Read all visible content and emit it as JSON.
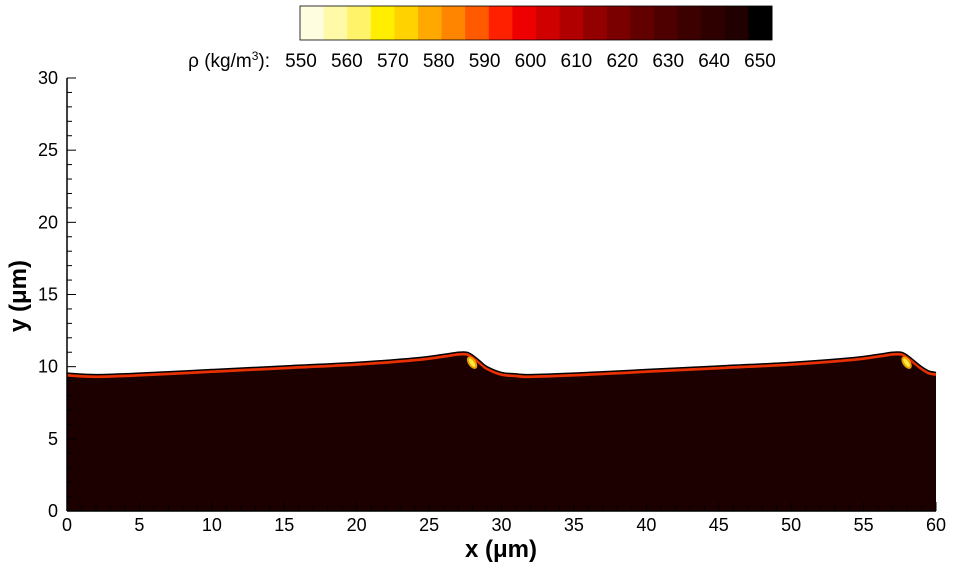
{
  "chart_data": {
    "type": "contour",
    "colorbar": {
      "label_prefix": "ρ (kg/m",
      "label_exp": "3",
      "label_suffix": "):",
      "levels": [
        550,
        560,
        570,
        580,
        590,
        600,
        610,
        620,
        630,
        640,
        650
      ],
      "colors": [
        "#fffde0",
        "#fffaa8",
        "#fff36a",
        "#ffee00",
        "#ffd200",
        "#ffa800",
        "#ff8400",
        "#ff5a00",
        "#ff2000",
        "#ee0000",
        "#cf0000",
        "#b10000",
        "#930000",
        "#7a0000",
        "#620000",
        "#4e0000",
        "#3d0000",
        "#2e0000",
        "#200000",
        "#000000"
      ]
    },
    "xaxis": {
      "label_var": "x",
      "label_unit": "μm",
      "min": 0,
      "max": 60,
      "ticks": [
        0,
        5,
        10,
        15,
        20,
        25,
        30,
        35,
        40,
        45,
        50,
        55,
        60
      ]
    },
    "yaxis": {
      "label_var": "y",
      "label_unit": "μm",
      "min": 0,
      "max": 30,
      "ticks": [
        0,
        5,
        10,
        15,
        20,
        25,
        30
      ]
    },
    "interface": {
      "x": [
        0,
        2,
        5,
        10,
        15,
        20,
        24,
        26,
        27,
        27.6,
        28,
        28.5,
        29,
        30,
        31,
        32,
        35,
        40,
        45,
        50,
        54,
        56,
        57,
        57.6,
        58,
        58.5,
        59,
        59.5,
        60
      ],
      "y": [
        9.55,
        9.45,
        9.55,
        9.8,
        10.05,
        10.3,
        10.6,
        10.85,
        11.0,
        11.0,
        10.8,
        10.4,
        10.0,
        9.6,
        9.5,
        9.45,
        9.55,
        9.8,
        10.05,
        10.3,
        10.6,
        10.85,
        11.0,
        11.0,
        10.8,
        10.4,
        10.0,
        9.7,
        9.6
      ]
    },
    "liquid_density": 650,
    "highlight_density": 580,
    "grid": false
  }
}
